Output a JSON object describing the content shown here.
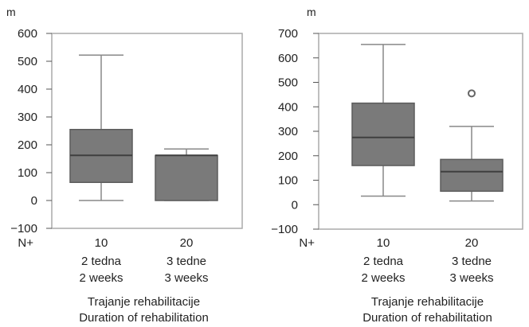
{
  "n_label": "N+",
  "chart_data": [
    {
      "type": "boxplot",
      "unit": "m",
      "ylim": [
        -100,
        600
      ],
      "yticks": [
        "600",
        "500",
        "400",
        "300",
        "200",
        "100",
        "0",
        "−100"
      ],
      "ytick_values": [
        600,
        500,
        400,
        300,
        200,
        100,
        0,
        -100
      ],
      "categories": [
        {
          "n": "10",
          "line1": "2 tedna",
          "line2": "2 weeks",
          "whisker_low": 0,
          "q1": 65,
          "median": 162,
          "q3": 255,
          "whisker_high": 522,
          "outliers": []
        },
        {
          "n": "20",
          "line1": "3 tedne",
          "line2": "3 weeks",
          "whisker_low": 0,
          "q1": 0,
          "median": 162,
          "q3": 162,
          "whisker_high": 185,
          "outliers": []
        }
      ],
      "xlabel_line1": "Trajanje rehabilitacije",
      "xlabel_line2": "Duration of rehabilitation"
    },
    {
      "type": "boxplot",
      "unit": "m",
      "ylim": [
        -100,
        700
      ],
      "yticks": [
        "700",
        "600",
        "500",
        "400",
        "300",
        "200",
        "100",
        "0",
        "−100"
      ],
      "ytick_values": [
        700,
        600,
        500,
        400,
        300,
        200,
        100,
        0,
        -100
      ],
      "categories": [
        {
          "n": "10",
          "line1": "2 tedna",
          "line2": "2 weeks",
          "whisker_low": 35,
          "q1": 160,
          "median": 275,
          "q3": 415,
          "whisker_high": 655,
          "outliers": []
        },
        {
          "n": "20",
          "line1": "3 tedne",
          "line2": "3 weeks",
          "whisker_low": 15,
          "q1": 55,
          "median": 135,
          "q3": 185,
          "whisker_high": 320,
          "outliers": [
            455
          ]
        }
      ],
      "xlabel_line1": "Trajanje rehabilitacije",
      "xlabel_line2": "Duration of rehabilitation"
    }
  ]
}
